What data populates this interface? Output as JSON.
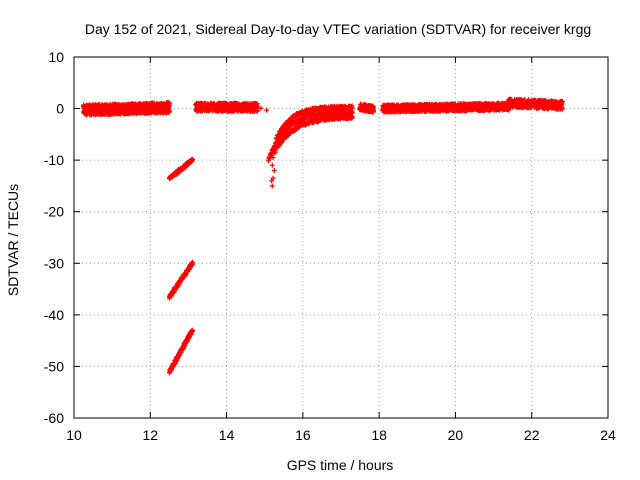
{
  "chart_data": {
    "type": "scatter",
    "title": "Day 152 of 2021, Sidereal Day-to-day VTEC variation (SDTVAR) for receiver krgg",
    "xlabel": "GPS time / hours",
    "ylabel": "SDTVAR / TECUs",
    "xlim": [
      10,
      24
    ],
    "ylim": [
      -60,
      10
    ],
    "xticks": [
      10,
      12,
      14,
      16,
      18,
      20,
      22,
      24
    ],
    "yticks": [
      10,
      0,
      -10,
      -20,
      -30,
      -40,
      -50,
      -60
    ],
    "grid": true,
    "marker": "+",
    "color": "#ff0000",
    "series": [
      {
        "segments": [
          {
            "kind": "band",
            "x0": 10.25,
            "x1": 12.5,
            "y_start": -0.3,
            "y_end": 0.2,
            "width": 2.0
          },
          {
            "kind": "band",
            "x0": 13.2,
            "x1": 14.8,
            "y_start": 0.3,
            "y_end": 0.2,
            "width": 1.6
          },
          {
            "kind": "points",
            "x": [
              14.9,
              15.05
            ],
            "y": [
              0.1,
              -0.3
            ]
          },
          {
            "kind": "line",
            "x0": 12.5,
            "x1": 13.1,
            "y0": -13.5,
            "y1": -10.0,
            "width": 0.6
          },
          {
            "kind": "line",
            "x0": 12.5,
            "x1": 13.1,
            "y0": -36.5,
            "y1": -30.0,
            "width": 0.6
          },
          {
            "kind": "line",
            "x0": 12.5,
            "x1": 13.1,
            "y0": -51.0,
            "y1": -43.0,
            "width": 0.6
          },
          {
            "kind": "decay",
            "x0": 15.1,
            "x1": 17.3,
            "y_start": -10.0,
            "y_end": -0.6,
            "k": 3.0
          },
          {
            "kind": "decay",
            "x0": 15.25,
            "x1": 17.3,
            "y_start": -8.5,
            "y_end": -1.5,
            "k": 2.5
          },
          {
            "kind": "decay",
            "x0": 15.3,
            "x1": 17.3,
            "y_start": -6.0,
            "y_end": 0.3,
            "k": 3.2
          },
          {
            "kind": "points",
            "x": [
              15.2,
              15.22,
              15.25,
              15.18,
              15.2,
              15.22
            ],
            "y": [
              -15.0,
              -13.5,
              -12.0,
              -14.0,
              -11.0,
              -9.5
            ]
          },
          {
            "kind": "band",
            "x0": 17.5,
            "x1": 17.85,
            "y_start": 0.3,
            "y_end": -0.1,
            "width": 1.2
          },
          {
            "kind": "band",
            "x0": 18.1,
            "x1": 21.4,
            "y_start": 0.0,
            "y_end": 0.4,
            "width": 1.4
          },
          {
            "kind": "band",
            "x0": 21.4,
            "x1": 22.8,
            "y_start": 1.1,
            "y_end": 0.6,
            "width": 1.6
          }
        ]
      }
    ]
  }
}
